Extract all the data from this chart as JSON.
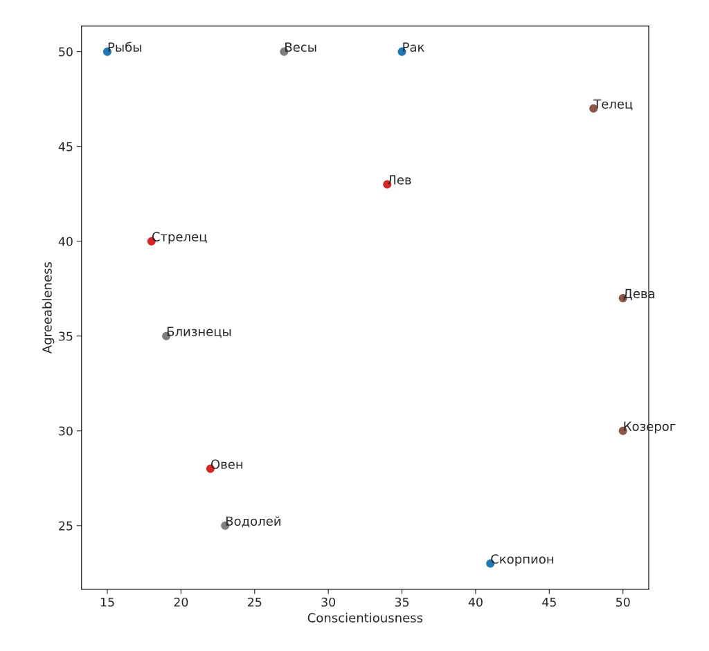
{
  "chart_data": {
    "type": "scatter",
    "xlabel": "Conscientiousness",
    "ylabel": "Agreeableness",
    "xlim": [
      13.25,
      51.75
    ],
    "ylim": [
      21.65,
      51.35
    ],
    "xticks": [
      15,
      20,
      25,
      30,
      35,
      40,
      45,
      50
    ],
    "yticks": [
      25,
      30,
      35,
      40,
      45,
      50
    ],
    "marker": "circle",
    "series": [
      {
        "color": "#1f77b4",
        "x": [
          15,
          35,
          41
        ],
        "values": [
          50,
          50,
          23
        ]
      },
      {
        "color": "#7f7f7f",
        "x": [
          27,
          19,
          23
        ],
        "values": [
          50,
          35,
          25
        ]
      },
      {
        "color": "#d62728",
        "x": [
          34,
          18,
          22
        ],
        "values": [
          43,
          40,
          28
        ]
      },
      {
        "color": "#8c564b",
        "x": [
          48,
          50,
          50
        ],
        "values": [
          47,
          37,
          30
        ]
      }
    ],
    "annotations": [
      {
        "text": "Рыбы",
        "x": 15,
        "y": 50
      },
      {
        "text": "Весы",
        "x": 27,
        "y": 50
      },
      {
        "text": "Рак",
        "x": 35,
        "y": 50
      },
      {
        "text": "Телец",
        "x": 48,
        "y": 47
      },
      {
        "text": "Лев",
        "x": 34,
        "y": 43
      },
      {
        "text": "Стрелец",
        "x": 18,
        "y": 40
      },
      {
        "text": "Дева",
        "x": 50,
        "y": 37
      },
      {
        "text": "Близнецы",
        "x": 19,
        "y": 35
      },
      {
        "text": "Козерог",
        "x": 50,
        "y": 30
      },
      {
        "text": "Овен",
        "x": 22,
        "y": 28
      },
      {
        "text": "Водолей",
        "x": 23,
        "y": 25
      },
      {
        "text": "Скорпион",
        "x": 41,
        "y": 23
      }
    ]
  }
}
